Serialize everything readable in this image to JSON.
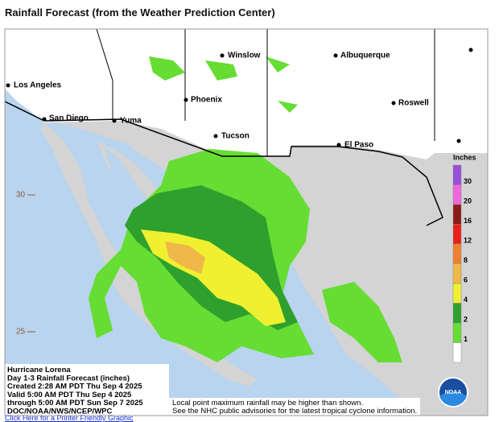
{
  "header": {
    "title": "Rainfall Forecast (from the Weather Prediction Center)"
  },
  "cities": [
    "Los Angeles",
    "San Diego",
    "Yuma",
    "Phoenix",
    "Winslow",
    "Tucson",
    "Albuquerque",
    "Roswell",
    "El Paso"
  ],
  "latitudes": [
    "30",
    "25"
  ],
  "legend": {
    "title": "Inches",
    "labels": [
      "30",
      "20",
      "16",
      "12",
      "8",
      "6",
      "4",
      "2",
      "1"
    ],
    "colors": [
      "#9a4fd8",
      "#ee66dd",
      "#8b1a1a",
      "#e8201a",
      "#f08030",
      "#f0b848",
      "#f0f030",
      "#2ea02e",
      "#66dd33",
      "#ffffff"
    ]
  },
  "info": [
    "Hurricane Lorena",
    "Day 1-3 Rainfall Forecast (inches)",
    "Created 2:28 AM PDT Thu Sep 4 2025",
    "Valid 5:00 AM PDT Thu Sep 4 2025",
    "through 5:00 AM PDT Sun Sep 7 2025",
    "DOC/NOAA/NWS/NCEP/WPC"
  ],
  "disclaimer": [
    "Local point maximum rainfall may be higher than shown.",
    "See the NHC public advisories for the latest tropical cyclone information."
  ],
  "logo": "NOAA",
  "link": "Click Here for a Printer Friendly Graphic"
}
